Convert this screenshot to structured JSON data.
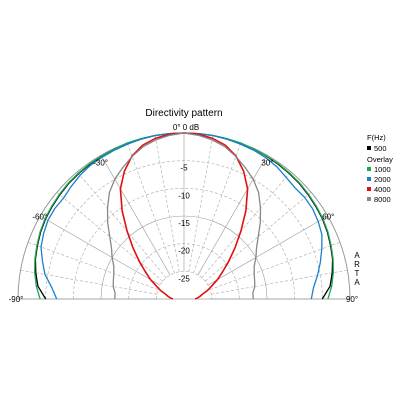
{
  "chart_data": {
    "type": "polar",
    "title": "Directivity pattern",
    "angle_range": [
      -90,
      90
    ],
    "radial_range_db": [
      -30,
      0
    ],
    "angle_labels": [
      {
        "angle": -90,
        "label": "-90°"
      },
      {
        "angle": -60,
        "label": "-60°"
      },
      {
        "angle": -30,
        "label": "-30°"
      },
      {
        "angle": 0,
        "label": "0° 0 dB"
      },
      {
        "angle": 30,
        "label": "30°"
      },
      {
        "angle": 60,
        "label": "60°"
      },
      {
        "angle": 90,
        "label": "90°"
      }
    ],
    "radial_labels": [
      {
        "db": -5,
        "label": "-5"
      },
      {
        "db": -10,
        "label": "-10"
      },
      {
        "db": -15,
        "label": "-15"
      },
      {
        "db": -20,
        "label": "-20"
      },
      {
        "db": -25,
        "label": "-25"
      }
    ],
    "grid": true,
    "legend": {
      "position": "right",
      "title": "F(Hz)",
      "overlay_label": "Overlay"
    },
    "watermark": "ARTA",
    "angles": [
      -90,
      -85,
      -80,
      -75,
      -70,
      -65,
      -60,
      -55,
      -50,
      -45,
      -40,
      -35,
      -30,
      -25,
      -20,
      -15,
      -10,
      -5,
      0,
      5,
      10,
      15,
      20,
      25,
      30,
      35,
      40,
      45,
      50,
      55,
      60,
      65,
      70,
      75,
      80,
      85,
      90
    ],
    "series": [
      {
        "name": "500",
        "color": "#000000",
        "values": [
          -5,
          -3.5,
          -2.8,
          -2.2,
          -1.8,
          -1.4,
          -1.1,
          -0.9,
          -0.7,
          -0.5,
          -0.4,
          -0.3,
          -0.2,
          -0.1,
          -0.1,
          0,
          0,
          0,
          0,
          0,
          0,
          0,
          -0.1,
          -0.1,
          -0.2,
          -0.3,
          -0.4,
          -0.5,
          -0.7,
          -0.9,
          -1.1,
          -1.4,
          -1.8,
          -2.2,
          -2.8,
          -3.5,
          -5
        ]
      },
      {
        "name": "1000",
        "color": "#1aa84f",
        "values": [
          -4,
          -3.2,
          -2.6,
          -2.1,
          -1.7,
          -1.3,
          -1.0,
          -0.8,
          -0.6,
          -0.4,
          -0.3,
          -0.2,
          -0.15,
          -0.1,
          0,
          0,
          0,
          0,
          0,
          0,
          0,
          0,
          0,
          -0.1,
          -0.15,
          -0.2,
          -0.3,
          -0.4,
          -0.6,
          -0.8,
          -1.0,
          -1.3,
          -1.7,
          -2.1,
          -2.6,
          -3.2,
          -4
        ]
      },
      {
        "name": "2000",
        "color": "#1a7fd0",
        "values": [
          -7,
          -6,
          -4.5,
          -3.5,
          -2.5,
          -2.0,
          -1.6,
          -1.5,
          -1.6,
          -1.2,
          -0.8,
          -0.5,
          -0.4,
          -0.3,
          -0.2,
          -0.1,
          0,
          0,
          0,
          0,
          0,
          -0.1,
          -0.2,
          -0.3,
          -0.5,
          -0.8,
          -1.3,
          -1.6,
          -1.5,
          -1.6,
          -2.0,
          -2.5,
          -3.5,
          -4.5,
          -5.5,
          -6.5,
          -7
        ]
      },
      {
        "name": "4000",
        "color": "#e01010",
        "values": [
          -28,
          -27.5,
          -27,
          -26.5,
          -25.5,
          -24.5,
          -23,
          -21.5,
          -19.5,
          -17,
          -14,
          -10.5,
          -7,
          -4.5,
          -2.5,
          -1.2,
          -0.5,
          -0.1,
          0,
          -0.1,
          -0.5,
          -1.2,
          -2.5,
          -4.5,
          -7,
          -10.5,
          -14,
          -17,
          -19.5,
          -21.5,
          -23,
          -24.5,
          -25.5,
          -26.5,
          -27,
          -27.5,
          -28
        ]
      },
      {
        "name": "8000",
        "color": "#888888",
        "values": [
          -17.5,
          -17.5,
          -17,
          -16.8,
          -16.5,
          -16,
          -15,
          -14,
          -12.5,
          -10.5,
          -8.5,
          -6.5,
          -5.0,
          -3.8,
          -2.6,
          -1.5,
          -0.8,
          -0.3,
          0,
          -0.3,
          -0.8,
          -1.5,
          -2.6,
          -3.8,
          -5.0,
          -6.5,
          -8.5,
          -10.5,
          -12.5,
          -14,
          -15,
          -16,
          -16.5,
          -16.8,
          -17,
          -17.5,
          -17.5
        ]
      }
    ]
  }
}
